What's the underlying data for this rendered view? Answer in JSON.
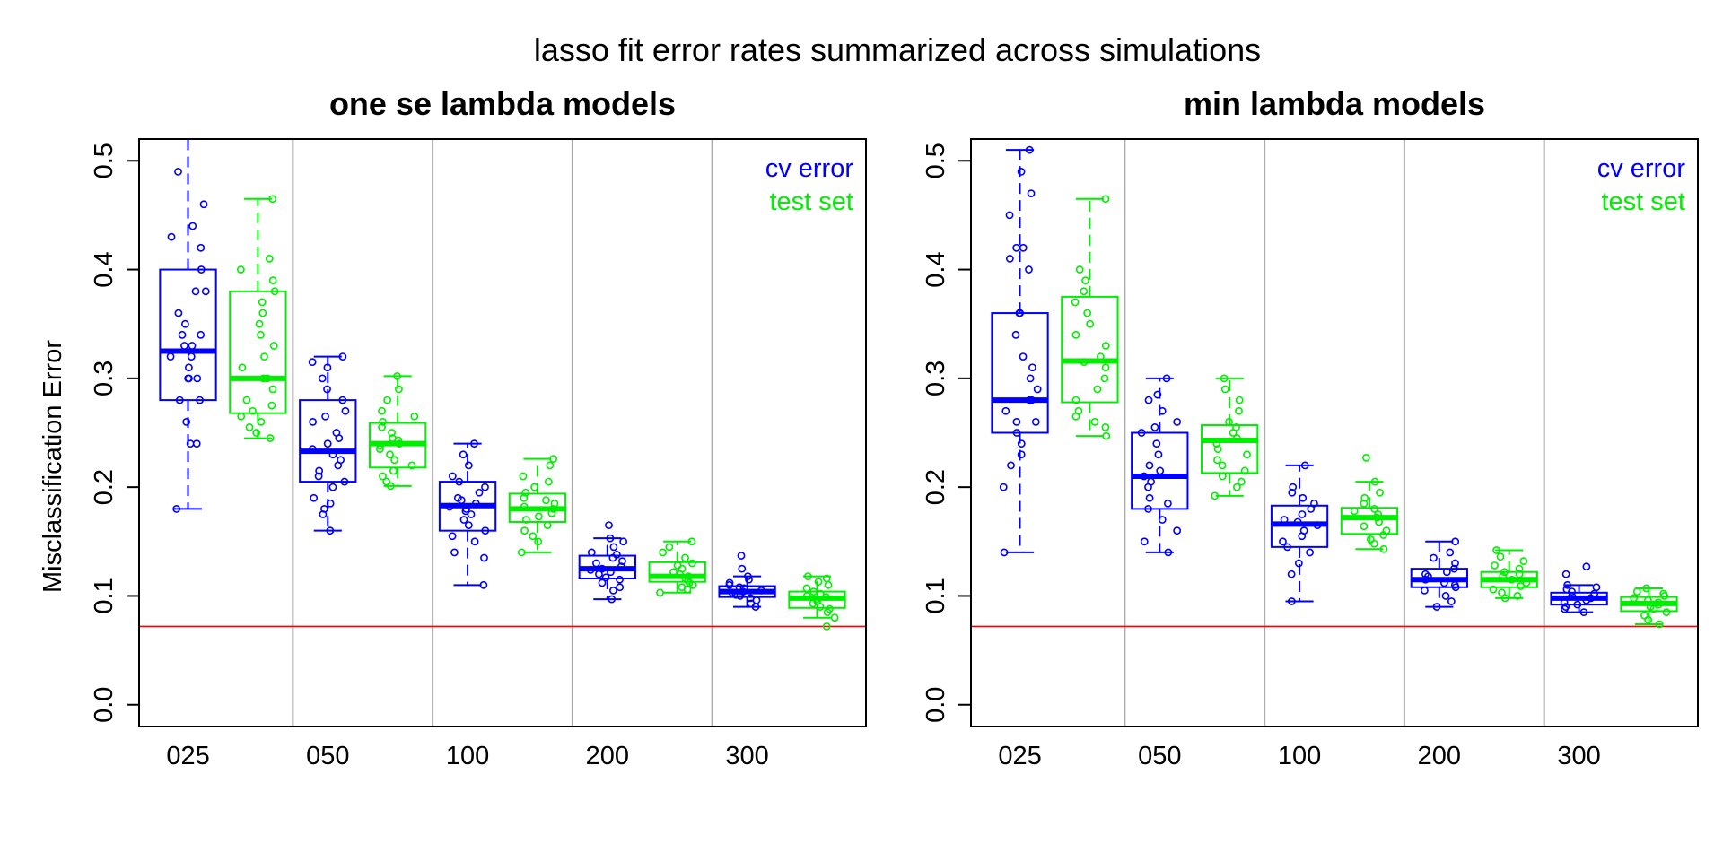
{
  "figure": {
    "title": "lasso fit error rates summarized across simulations",
    "ylabel": "Misclassification Error"
  },
  "colors": {
    "cv": "#0000ff",
    "test": "#00ee00",
    "reference": "#ff0000",
    "separator": "#aaaaaa",
    "axis": "#000000"
  },
  "chart_data": [
    {
      "type": "boxplot",
      "title": "one se lambda models",
      "ylabel": "Misclassification Error",
      "ylim": [
        -0.02,
        0.52
      ],
      "yticks": [
        0.0,
        0.1,
        0.2,
        0.3,
        0.4,
        0.5
      ],
      "ytick_labels": [
        "0.0",
        "0.1",
        "0.2",
        "0.3",
        "0.4",
        "0.5"
      ],
      "categories": [
        "025",
        "050",
        "100",
        "200",
        "300"
      ],
      "reference_line": 0.072,
      "legend": {
        "placement": "top-right",
        "entries": [
          "cv error",
          "test set"
        ]
      },
      "series": [
        {
          "name": "cv error",
          "boxes": [
            {
              "min": 0.18,
              "q1": 0.28,
              "median": 0.325,
              "q3": 0.4,
              "max": 0.53,
              "points": [
                0.18,
                0.24,
                0.24,
                0.26,
                0.28,
                0.28,
                0.3,
                0.3,
                0.3,
                0.31,
                0.32,
                0.32,
                0.33,
                0.33,
                0.34,
                0.34,
                0.35,
                0.36,
                0.38,
                0.38,
                0.4,
                0.42,
                0.43,
                0.44,
                0.46,
                0.49,
                0.53
              ]
            },
            {
              "min": 0.16,
              "q1": 0.205,
              "median": 0.233,
              "q3": 0.28,
              "max": 0.32,
              "points": [
                0.16,
                0.175,
                0.18,
                0.185,
                0.19,
                0.2,
                0.205,
                0.21,
                0.215,
                0.22,
                0.225,
                0.23,
                0.235,
                0.24,
                0.245,
                0.25,
                0.26,
                0.265,
                0.27,
                0.28,
                0.29,
                0.3,
                0.31,
                0.315,
                0.32
              ]
            },
            {
              "min": 0.11,
              "q1": 0.16,
              "median": 0.183,
              "q3": 0.205,
              "max": 0.24,
              "points": [
                0.11,
                0.135,
                0.14,
                0.15,
                0.155,
                0.16,
                0.165,
                0.17,
                0.175,
                0.178,
                0.18,
                0.182,
                0.185,
                0.188,
                0.19,
                0.195,
                0.2,
                0.205,
                0.21,
                0.22,
                0.23,
                0.24
              ]
            },
            {
              "min": 0.097,
              "q1": 0.116,
              "median": 0.125,
              "q3": 0.137,
              "max": 0.153,
              "points": [
                0.097,
                0.105,
                0.108,
                0.112,
                0.115,
                0.117,
                0.12,
                0.122,
                0.124,
                0.125,
                0.127,
                0.13,
                0.132,
                0.135,
                0.138,
                0.14,
                0.145,
                0.15,
                0.153,
                0.165
              ]
            },
            {
              "min": 0.09,
              "q1": 0.099,
              "median": 0.104,
              "q3": 0.109,
              "max": 0.118,
              "points": [
                0.09,
                0.093,
                0.096,
                0.098,
                0.1,
                0.101,
                0.103,
                0.104,
                0.105,
                0.107,
                0.108,
                0.11,
                0.112,
                0.115,
                0.118,
                0.125,
                0.137
              ]
            }
          ]
        },
        {
          "name": "test set",
          "boxes": [
            {
              "min": 0.245,
              "q1": 0.268,
              "median": 0.3,
              "q3": 0.38,
              "max": 0.465,
              "points": [
                0.245,
                0.25,
                0.255,
                0.26,
                0.265,
                0.27,
                0.275,
                0.28,
                0.29,
                0.3,
                0.3,
                0.31,
                0.32,
                0.33,
                0.34,
                0.35,
                0.36,
                0.37,
                0.38,
                0.39,
                0.4,
                0.41,
                0.465
              ]
            },
            {
              "min": 0.201,
              "q1": 0.218,
              "median": 0.24,
              "q3": 0.259,
              "max": 0.302,
              "points": [
                0.201,
                0.205,
                0.21,
                0.215,
                0.22,
                0.225,
                0.23,
                0.235,
                0.238,
                0.24,
                0.243,
                0.245,
                0.25,
                0.255,
                0.26,
                0.265,
                0.27,
                0.28,
                0.29,
                0.302
              ]
            },
            {
              "min": 0.14,
              "q1": 0.168,
              "median": 0.18,
              "q3": 0.194,
              "max": 0.226,
              "points": [
                0.14,
                0.15,
                0.155,
                0.16,
                0.165,
                0.17,
                0.173,
                0.176,
                0.18,
                0.182,
                0.185,
                0.188,
                0.19,
                0.195,
                0.2,
                0.205,
                0.21,
                0.22,
                0.226
              ]
            },
            {
              "min": 0.103,
              "q1": 0.113,
              "median": 0.118,
              "q3": 0.131,
              "max": 0.15,
              "points": [
                0.103,
                0.106,
                0.108,
                0.11,
                0.112,
                0.114,
                0.116,
                0.118,
                0.12,
                0.122,
                0.125,
                0.128,
                0.13,
                0.135,
                0.14,
                0.145,
                0.15
              ]
            },
            {
              "min": 0.08,
              "q1": 0.089,
              "median": 0.098,
              "q3": 0.104,
              "max": 0.118,
              "points": [
                0.072,
                0.08,
                0.085,
                0.088,
                0.09,
                0.093,
                0.095,
                0.097,
                0.099,
                0.1,
                0.102,
                0.104,
                0.107,
                0.11,
                0.113,
                0.116,
                0.118
              ]
            }
          ]
        }
      ]
    },
    {
      "type": "boxplot",
      "title": "min lambda models",
      "ylabel": "",
      "ylim": [
        -0.02,
        0.52
      ],
      "yticks": [
        0.0,
        0.1,
        0.2,
        0.3,
        0.4,
        0.5
      ],
      "ytick_labels": [
        "0.0",
        "0.1",
        "0.2",
        "0.3",
        "0.4",
        "0.5"
      ],
      "categories": [
        "025",
        "050",
        "100",
        "200",
        "300"
      ],
      "reference_line": 0.072,
      "legend": {
        "placement": "top-right",
        "entries": [
          "cv error",
          "test set"
        ]
      },
      "series": [
        {
          "name": "cv error",
          "boxes": [
            {
              "min": 0.14,
              "q1": 0.25,
              "median": 0.28,
              "q3": 0.36,
              "max": 0.51,
              "points": [
                0.14,
                0.2,
                0.22,
                0.23,
                0.24,
                0.25,
                0.26,
                0.26,
                0.27,
                0.28,
                0.28,
                0.29,
                0.3,
                0.31,
                0.32,
                0.34,
                0.36,
                0.36,
                0.4,
                0.41,
                0.42,
                0.42,
                0.45,
                0.47,
                0.49,
                0.51
              ]
            },
            {
              "min": 0.14,
              "q1": 0.18,
              "median": 0.21,
              "q3": 0.25,
              "max": 0.3,
              "points": [
                0.14,
                0.15,
                0.16,
                0.17,
                0.18,
                0.185,
                0.19,
                0.2,
                0.205,
                0.21,
                0.215,
                0.22,
                0.23,
                0.24,
                0.25,
                0.255,
                0.26,
                0.27,
                0.28,
                0.285,
                0.3
              ]
            },
            {
              "min": 0.095,
              "q1": 0.145,
              "median": 0.166,
              "q3": 0.183,
              "max": 0.22,
              "points": [
                0.095,
                0.12,
                0.13,
                0.14,
                0.145,
                0.15,
                0.155,
                0.16,
                0.165,
                0.168,
                0.17,
                0.175,
                0.18,
                0.185,
                0.19,
                0.195,
                0.2,
                0.22
              ]
            },
            {
              "min": 0.09,
              "q1": 0.108,
              "median": 0.115,
              "q3": 0.125,
              "max": 0.15,
              "points": [
                0.09,
                0.095,
                0.1,
                0.105,
                0.108,
                0.11,
                0.112,
                0.115,
                0.118,
                0.12,
                0.122,
                0.125,
                0.13,
                0.135,
                0.14,
                0.15
              ]
            },
            {
              "min": 0.085,
              "q1": 0.092,
              "median": 0.098,
              "q3": 0.103,
              "max": 0.11,
              "points": [
                0.085,
                0.088,
                0.09,
                0.092,
                0.094,
                0.096,
                0.098,
                0.1,
                0.102,
                0.104,
                0.106,
                0.108,
                0.11,
                0.12,
                0.127
              ]
            }
          ]
        },
        {
          "name": "test set",
          "boxes": [
            {
              "min": 0.247,
              "q1": 0.278,
              "median": 0.316,
              "q3": 0.375,
              "max": 0.465,
              "points": [
                0.247,
                0.255,
                0.26,
                0.265,
                0.27,
                0.28,
                0.29,
                0.3,
                0.31,
                0.315,
                0.32,
                0.33,
                0.34,
                0.35,
                0.36,
                0.37,
                0.38,
                0.39,
                0.4,
                0.465
              ]
            },
            {
              "min": 0.192,
              "q1": 0.213,
              "median": 0.243,
              "q3": 0.257,
              "max": 0.3,
              "points": [
                0.192,
                0.2,
                0.205,
                0.21,
                0.215,
                0.22,
                0.225,
                0.23,
                0.235,
                0.24,
                0.245,
                0.25,
                0.255,
                0.26,
                0.27,
                0.28,
                0.29,
                0.3
              ]
            },
            {
              "min": 0.143,
              "q1": 0.157,
              "median": 0.172,
              "q3": 0.181,
              "max": 0.205,
              "points": [
                0.143,
                0.148,
                0.152,
                0.156,
                0.16,
                0.164,
                0.168,
                0.172,
                0.175,
                0.178,
                0.18,
                0.185,
                0.19,
                0.195,
                0.205,
                0.227
              ]
            },
            {
              "min": 0.098,
              "q1": 0.108,
              "median": 0.115,
              "q3": 0.122,
              "max": 0.142,
              "points": [
                0.098,
                0.1,
                0.103,
                0.106,
                0.109,
                0.112,
                0.115,
                0.118,
                0.12,
                0.122,
                0.125,
                0.128,
                0.132,
                0.136,
                0.142
              ]
            },
            {
              "min": 0.074,
              "q1": 0.086,
              "median": 0.093,
              "q3": 0.099,
              "max": 0.107,
              "points": [
                0.074,
                0.078,
                0.082,
                0.085,
                0.088,
                0.09,
                0.092,
                0.094,
                0.096,
                0.098,
                0.1,
                0.102,
                0.104,
                0.107
              ]
            }
          ]
        }
      ]
    }
  ]
}
